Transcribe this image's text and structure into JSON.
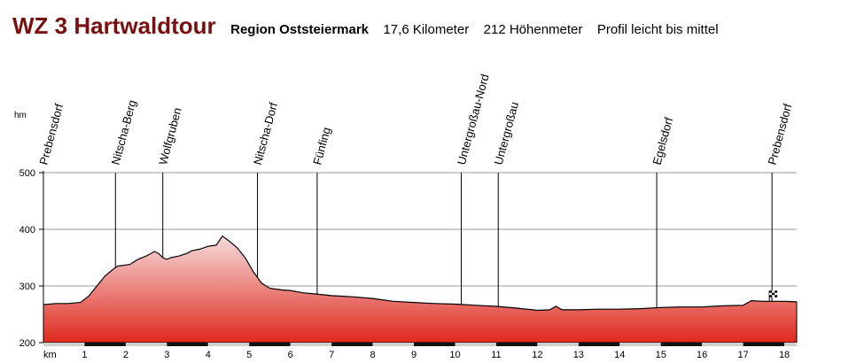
{
  "header": {
    "title": "WZ 3 Hartwaldtour",
    "region": "Region Oststeiermark",
    "distance": "17,6 Kilometer",
    "elevation": "212 Höhenmeter",
    "profile": "Profil leicht bis mittel"
  },
  "chart_data": {
    "type": "area",
    "title": "WZ 3 Hartwaldtour",
    "ylabel": "hm",
    "xlabel": "km",
    "xlim": [
      0,
      18.3
    ],
    "ylim": [
      200,
      500
    ],
    "yticks": [
      200,
      300,
      400,
      500
    ],
    "xticks": [
      1,
      2,
      3,
      4,
      5,
      6,
      7,
      8,
      9,
      10,
      11,
      12,
      13,
      14,
      15,
      16,
      17,
      18
    ],
    "fill_top_color": "#f6dcdc",
    "fill_bottom_color": "#e02a1e",
    "x": [
      0,
      0.3,
      0.6,
      0.9,
      1.1,
      1.3,
      1.5,
      1.7,
      1.8,
      1.9,
      2.1,
      2.3,
      2.5,
      2.7,
      2.8,
      2.9,
      3.0,
      3.1,
      3.3,
      3.5,
      3.6,
      3.8,
      4.0,
      4.2,
      4.35,
      4.5,
      4.7,
      4.9,
      5.1,
      5.3,
      5.5,
      5.8,
      6.0,
      6.3,
      6.6,
      7.0,
      7.5,
      8.0,
      8.5,
      9.0,
      9.5,
      10.0,
      10.5,
      11.0,
      11.5,
      12.0,
      12.3,
      12.45,
      12.6,
      13.0,
      13.5,
      14.0,
      14.5,
      15.0,
      15.5,
      16.0,
      16.5,
      17.0,
      17.2,
      17.5,
      18.0,
      18.3
    ],
    "y": [
      267,
      269,
      269,
      271,
      282,
      300,
      318,
      330,
      335,
      336,
      338,
      347,
      353,
      361,
      357,
      350,
      347,
      350,
      353,
      358,
      362,
      365,
      370,
      372,
      388,
      380,
      368,
      350,
      325,
      305,
      296,
      293,
      292,
      288,
      286,
      283,
      281,
      278,
      273,
      271,
      269,
      268,
      266,
      264,
      261,
      257,
      258,
      264,
      258,
      258,
      259,
      259,
      260,
      262,
      263,
      263,
      265,
      266,
      274,
      273,
      273,
      272
    ],
    "waypoints": [
      {
        "name": "Prebensdorf",
        "km": 0.0
      },
      {
        "name": "Nitscha-Berg",
        "km": 1.75
      },
      {
        "name": "Wolfgruben",
        "km": 2.9
      },
      {
        "name": "Nitscha-Dorf",
        "km": 5.2
      },
      {
        "name": "Fünfing",
        "km": 6.65
      },
      {
        "name": "Untergroßau-Nord",
        "km": 10.15
      },
      {
        "name": "Untergroßau",
        "km": 11.05
      },
      {
        "name": "Egelsdorf",
        "km": 14.9
      },
      {
        "name": "Prebensdorf",
        "km": 17.7
      }
    ]
  }
}
